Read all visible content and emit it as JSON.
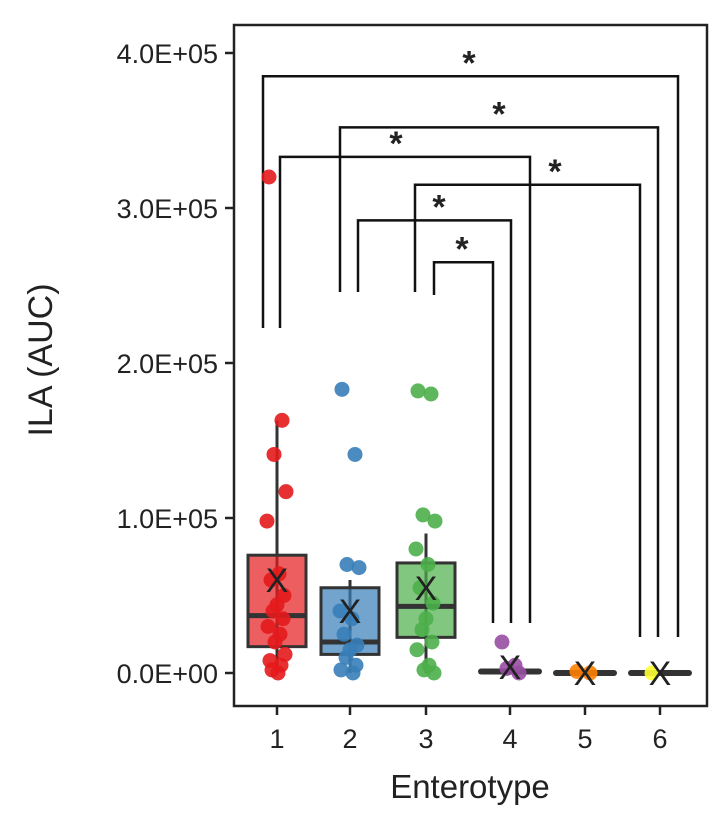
{
  "chart_data": {
    "type": "box",
    "title": "",
    "xlabel": "Enterotype",
    "ylabel": "ILA (AUC)",
    "ylim": [
      0,
      400000
    ],
    "y_ticks": [
      0,
      100000,
      200000,
      300000,
      400000
    ],
    "y_tick_labels": [
      "0.0E+00",
      "1.0E+05",
      "2.0E+05",
      "3.0E+05",
      "4.0E+05"
    ],
    "categories": [
      "1",
      "2",
      "3",
      "4",
      "5",
      "6"
    ],
    "grid": false,
    "groups": [
      {
        "name": "1",
        "color": "#e41a1c",
        "q1": 17000,
        "median": 37000,
        "q3": 76000,
        "whisker_low": 0,
        "whisker_high": 163000,
        "mean": 60000,
        "points": [
          320000,
          163000,
          141000,
          117000,
          98000,
          64000,
          60000,
          50000,
          44000,
          40000,
          35000,
          30000,
          25000,
          20000,
          12000,
          8000,
          5000,
          2000,
          0
        ]
      },
      {
        "name": "2",
        "color": "#377eb8",
        "q1": 12000,
        "median": 20000,
        "q3": 55000,
        "whisker_low": 0,
        "whisker_high": 60000,
        "mean": 40000,
        "points": [
          183000,
          141000,
          70000,
          68000,
          40000,
          35000,
          25000,
          18000,
          15000,
          10000,
          5000,
          2000,
          0
        ]
      },
      {
        "name": "3",
        "color": "#4daf4a",
        "q1": 23000,
        "median": 43000,
        "q3": 71000,
        "whisker_low": 0,
        "whisker_high": 90000,
        "mean": 55000,
        "points": [
          182000,
          180000,
          102000,
          98000,
          80000,
          70000,
          55000,
          45000,
          35000,
          28000,
          20000,
          15000,
          5000,
          2000,
          0
        ]
      },
      {
        "name": "4",
        "color": "#984ea3",
        "q1": 0,
        "median": 1000,
        "q3": 2000,
        "whisker_low": 0,
        "whisker_high": 3000,
        "mean": 4000,
        "points": [
          20000,
          5000,
          3000,
          0
        ]
      },
      {
        "name": "5",
        "color": "#ff7f00",
        "q1": 0,
        "median": 0,
        "q3": 0,
        "whisker_low": 0,
        "whisker_high": 0,
        "mean": 0,
        "points": [
          1000,
          0
        ]
      },
      {
        "name": "6",
        "color": "#ffff33",
        "q1": 0,
        "median": 0,
        "q3": 0,
        "whisker_low": 0,
        "whisker_high": 0,
        "mean": 0,
        "points": [
          0
        ]
      }
    ],
    "mean_marker": "X",
    "significance": [
      {
        "pair": [
          "1",
          "6"
        ],
        "y": 385000,
        "label": "*"
      },
      {
        "pair": [
          "2",
          "6"
        ],
        "y": 352000,
        "label": "*"
      },
      {
        "pair": [
          "1",
          "4"
        ],
        "y": 333000,
        "label": "*"
      },
      {
        "pair": [
          "3",
          "6"
        ],
        "y": 315000,
        "label": "*"
      },
      {
        "pair": [
          "2",
          "4"
        ],
        "y": 292000,
        "label": "*"
      },
      {
        "pair": [
          "3",
          "4"
        ],
        "y": 265000,
        "label": "*"
      }
    ]
  }
}
